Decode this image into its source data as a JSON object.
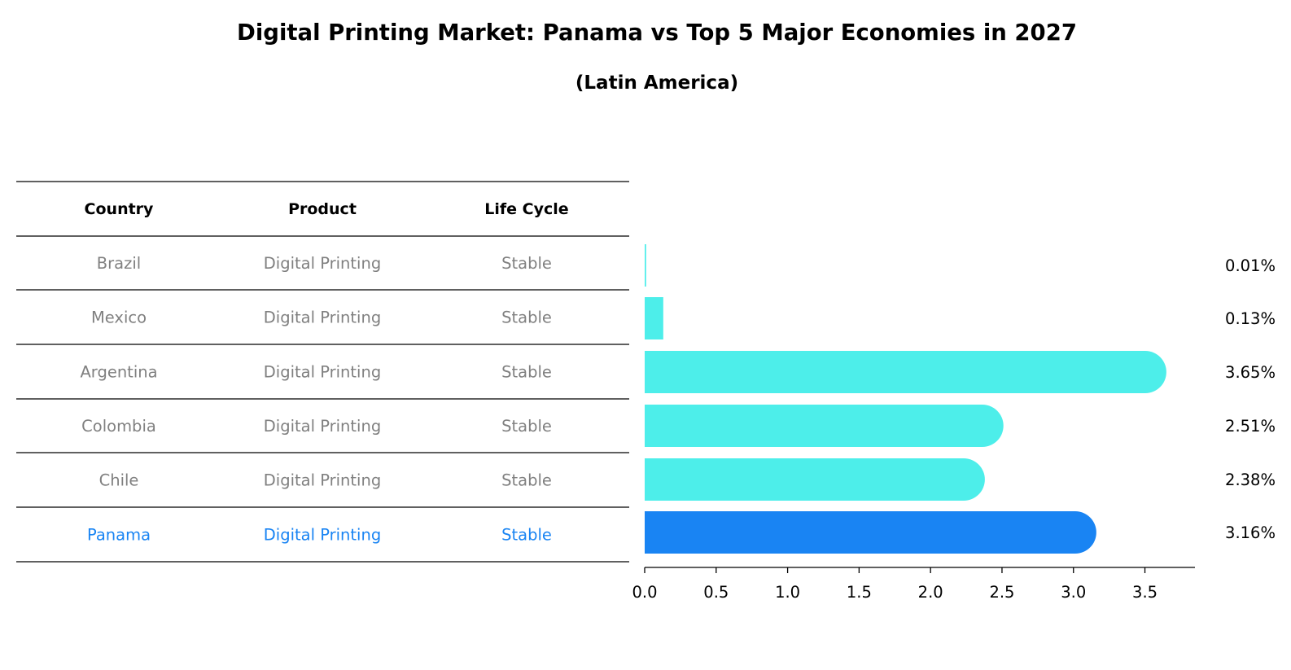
{
  "title": "Digital Printing Market: Panama vs Top 5 Major Economies in 2027",
  "subtitle": "(Latin America)",
  "table": {
    "headers": [
      "Country",
      "Product",
      "Life Cycle"
    ],
    "rows": [
      {
        "country": "Brazil",
        "product": "Digital Printing",
        "life_cycle": "Stable",
        "highlight": false
      },
      {
        "country": "Mexico",
        "product": "Digital Printing",
        "life_cycle": "Stable",
        "highlight": false
      },
      {
        "country": "Argentina",
        "product": "Digital Printing",
        "life_cycle": "Stable",
        "highlight": false
      },
      {
        "country": "Colombia",
        "product": "Digital Printing",
        "life_cycle": "Stable",
        "highlight": false
      },
      {
        "country": "Chile",
        "product": "Digital Printing",
        "life_cycle": "Stable",
        "highlight": false
      },
      {
        "country": "Panama",
        "product": "Digital Printing",
        "life_cycle": "Stable",
        "highlight": true
      }
    ]
  },
  "colors": {
    "bar": "#4deeea",
    "highlight_bar": "#1984f3",
    "highlight_text": "#1984f3",
    "muted_text": "#808080"
  },
  "chart_data": {
    "type": "bar",
    "orientation": "horizontal",
    "title": "Digital Printing Market: Panama vs Top 5 Major Economies in 2027",
    "subtitle": "(Latin America)",
    "categories": [
      "Brazil",
      "Mexico",
      "Argentina",
      "Colombia",
      "Chile",
      "Panama"
    ],
    "values": [
      0.01,
      0.13,
      3.65,
      2.51,
      2.38,
      3.16
    ],
    "value_labels": [
      "0.01%",
      "0.13%",
      "3.65%",
      "2.51%",
      "2.38%",
      "3.16%"
    ],
    "highlight": "Panama",
    "xlim": [
      0,
      3.85
    ],
    "xticks": [
      0.0,
      0.5,
      1.0,
      1.5,
      2.0,
      2.5,
      3.0,
      3.5
    ],
    "xtick_labels": [
      "0.0",
      "0.5",
      "1.0",
      "1.5",
      "2.0",
      "2.5",
      "3.0",
      "3.5"
    ],
    "xlabel": "",
    "ylabel": "",
    "grid": false
  }
}
